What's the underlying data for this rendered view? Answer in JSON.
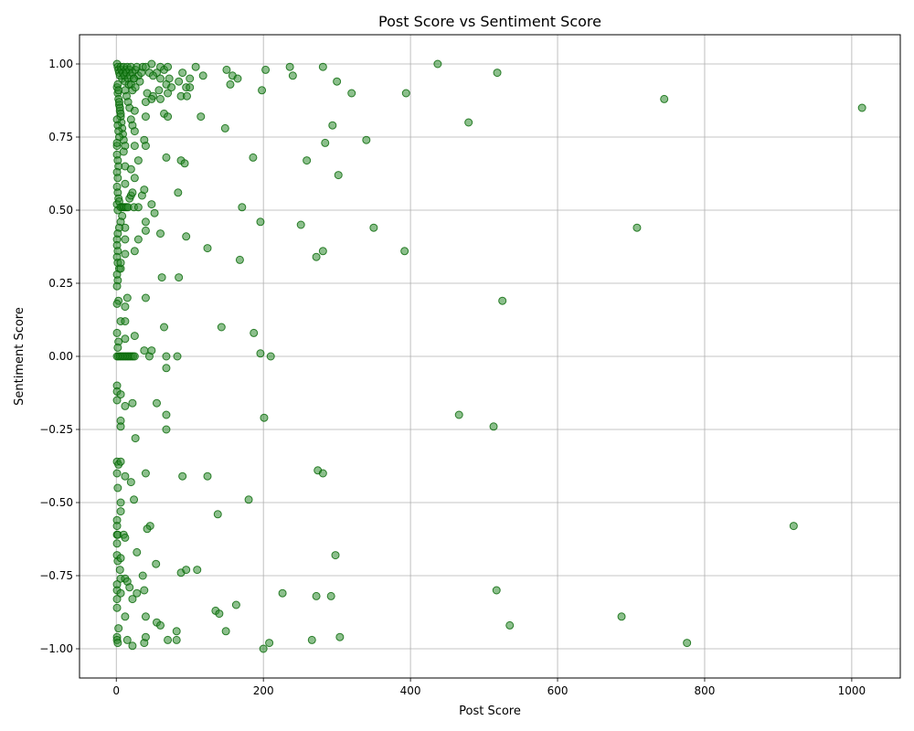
{
  "chart_data": {
    "type": "scatter",
    "title": "Post Score vs Sentiment Score",
    "xlabel": "Post Score",
    "ylabel": "Sentiment Score",
    "xlim": [
      -50,
      1066
    ],
    "ylim": [
      -1.1,
      1.1
    ],
    "x_ticks": [
      0,
      200,
      400,
      600,
      800,
      1000
    ],
    "y_ticks": [
      -1.0,
      -0.75,
      -0.5,
      -0.25,
      0.0,
      0.25,
      0.5,
      0.75,
      1.0
    ],
    "x_tick_labels": [
      "0",
      "200",
      "400",
      "600",
      "800",
      "1000"
    ],
    "y_tick_labels": [
      "−1.00",
      "−0.75",
      "−0.50",
      "−0.25",
      "0.00",
      "0.25",
      "0.50",
      "0.75",
      "1.00"
    ],
    "grid": true,
    "marker_color": "#2e8b2e",
    "marker_edge_color": "#006400",
    "marker_alpha": 0.55,
    "series": [
      {
        "points": [
          [
            1,
            1.0
          ],
          [
            2,
            0.99
          ],
          [
            3,
            0.98
          ],
          [
            4,
            0.97
          ],
          [
            5,
            0.96
          ],
          [
            6,
            0.99
          ],
          [
            7,
            0.98
          ],
          [
            8,
            0.95
          ],
          [
            9,
            0.97
          ],
          [
            10,
            0.99
          ],
          [
            11,
            0.96
          ],
          [
            12,
            0.94
          ],
          [
            13,
            0.98
          ],
          [
            14,
            0.97
          ],
          [
            15,
            0.99
          ],
          [
            16,
            0.95
          ],
          [
            17,
            0.93
          ],
          [
            18,
            0.98
          ],
          [
            19,
            0.96
          ],
          [
            20,
            0.99
          ],
          [
            22,
            0.97
          ],
          [
            24,
            0.95
          ],
          [
            26,
            0.98
          ],
          [
            28,
            0.99
          ],
          [
            30,
            0.96
          ],
          [
            32,
            0.94
          ],
          [
            34,
            0.97
          ],
          [
            36,
            0.99
          ],
          [
            1,
            0.92
          ],
          [
            2,
            0.9
          ],
          [
            3,
            0.88
          ],
          [
            4,
            0.86
          ],
          [
            5,
            0.84
          ],
          [
            6,
            0.82
          ],
          [
            7,
            0.8
          ],
          [
            8,
            0.78
          ],
          [
            9,
            0.76
          ],
          [
            10,
            0.74
          ],
          [
            1,
            0.72
          ],
          [
            2,
            0.93
          ],
          [
            3,
            0.91
          ],
          [
            4,
            0.87
          ],
          [
            5,
            0.85
          ],
          [
            6,
            0.83
          ],
          [
            1,
            0.81
          ],
          [
            2,
            0.79
          ],
          [
            3,
            0.77
          ],
          [
            4,
            0.75
          ],
          [
            1,
            0.73
          ],
          [
            12,
            0.91
          ],
          [
            14,
            0.89
          ],
          [
            16,
            0.87
          ],
          [
            18,
            0.85
          ],
          [
            20,
            0.93
          ],
          [
            22,
            0.91
          ],
          [
            24,
            0.95
          ],
          [
            26,
            0.92
          ],
          [
            40,
            0.99
          ],
          [
            48,
            1.0
          ],
          [
            55,
            0.97
          ],
          [
            60,
            0.99
          ],
          [
            65,
            0.98
          ],
          [
            70,
            0.99
          ],
          [
            72,
            0.95
          ],
          [
            45,
            0.97
          ],
          [
            50,
            0.96
          ],
          [
            85,
            0.94
          ],
          [
            90,
            0.97
          ],
          [
            100,
            0.95
          ],
          [
            108,
            0.99
          ],
          [
            118,
            0.96
          ],
          [
            60,
            0.95
          ],
          [
            68,
            0.93
          ],
          [
            75,
            0.92
          ],
          [
            95,
            0.92
          ],
          [
            100,
            0.92
          ],
          [
            42,
            0.9
          ],
          [
            50,
            0.89
          ],
          [
            58,
            0.91
          ],
          [
            70,
            0.9
          ],
          [
            88,
            0.89
          ],
          [
            96,
            0.89
          ],
          [
            40,
            0.87
          ],
          [
            48,
            0.88
          ],
          [
            60,
            0.88
          ],
          [
            25,
            0.84
          ],
          [
            40,
            0.82
          ],
          [
            65,
            0.83
          ],
          [
            70,
            0.82
          ],
          [
            115,
            0.82
          ],
          [
            148,
            0.78
          ],
          [
            150,
            0.98
          ],
          [
            158,
            0.96
          ],
          [
            165,
            0.95
          ],
          [
            155,
            0.93
          ],
          [
            198,
            0.91
          ],
          [
            203,
            0.98
          ],
          [
            236,
            0.99
          ],
          [
            240,
            0.96
          ],
          [
            281,
            0.99
          ],
          [
            300,
            0.94
          ],
          [
            320,
            0.9
          ],
          [
            394,
            0.9
          ],
          [
            437,
            1.0
          ],
          [
            518,
            0.97
          ],
          [
            745,
            0.88
          ],
          [
            479,
            0.8
          ],
          [
            1014,
            0.85
          ],
          [
            294,
            0.79
          ],
          [
            340,
            0.74
          ],
          [
            284,
            0.73
          ],
          [
            20,
            0.81
          ],
          [
            22,
            0.79
          ],
          [
            25,
            0.77
          ],
          [
            38,
            0.74
          ],
          [
            40,
            0.72
          ],
          [
            25,
            0.72
          ],
          [
            12,
            0.72
          ],
          [
            10,
            0.7
          ],
          [
            1,
            0.69
          ],
          [
            2,
            0.67
          ],
          [
            3,
            0.65
          ],
          [
            1,
            0.63
          ],
          [
            2,
            0.61
          ],
          [
            1,
            0.58
          ],
          [
            2,
            0.56
          ],
          [
            3,
            0.54
          ],
          [
            1,
            0.52
          ],
          [
            2,
            0.5
          ],
          [
            4,
            0.53
          ],
          [
            6,
            0.51
          ],
          [
            8,
            0.51
          ],
          [
            10,
            0.51
          ],
          [
            12,
            0.51
          ],
          [
            14,
            0.51
          ],
          [
            16,
            0.51
          ],
          [
            18,
            0.54
          ],
          [
            20,
            0.55
          ],
          [
            22,
            0.56
          ],
          [
            24,
            0.51
          ],
          [
            30,
            0.51
          ],
          [
            12,
            0.59
          ],
          [
            12,
            0.65
          ],
          [
            20,
            0.64
          ],
          [
            25,
            0.61
          ],
          [
            30,
            0.67
          ],
          [
            35,
            0.55
          ],
          [
            38,
            0.57
          ],
          [
            48,
            0.52
          ],
          [
            52,
            0.49
          ],
          [
            68,
            0.68
          ],
          [
            88,
            0.67
          ],
          [
            93,
            0.66
          ],
          [
            84,
            0.56
          ],
          [
            186,
            0.68
          ],
          [
            259,
            0.67
          ],
          [
            302,
            0.62
          ],
          [
            171,
            0.51
          ],
          [
            196,
            0.46
          ],
          [
            251,
            0.45
          ],
          [
            350,
            0.44
          ],
          [
            708,
            0.44
          ],
          [
            392,
            0.36
          ],
          [
            281,
            0.36
          ],
          [
            272,
            0.34
          ],
          [
            168,
            0.33
          ],
          [
            124,
            0.37
          ],
          [
            95,
            0.41
          ],
          [
            60,
            0.42
          ],
          [
            40,
            0.46
          ],
          [
            40,
            0.43
          ],
          [
            30,
            0.4
          ],
          [
            25,
            0.36
          ],
          [
            12,
            0.35
          ],
          [
            12,
            0.4
          ],
          [
            12,
            0.44
          ],
          [
            8,
            0.48
          ],
          [
            6,
            0.46
          ],
          [
            4,
            0.44
          ],
          [
            2,
            0.42
          ],
          [
            1,
            0.4
          ],
          [
            1,
            0.38
          ],
          [
            2,
            0.36
          ],
          [
            1,
            0.34
          ],
          [
            2,
            0.32
          ],
          [
            4,
            0.3
          ],
          [
            6,
            0.3
          ],
          [
            6,
            0.32
          ],
          [
            1,
            0.28
          ],
          [
            2,
            0.26
          ],
          [
            1,
            0.24
          ],
          [
            85,
            0.27
          ],
          [
            62,
            0.27
          ],
          [
            525,
            0.19
          ],
          [
            40,
            0.2
          ],
          [
            15,
            0.2
          ],
          [
            12,
            0.17
          ],
          [
            3,
            0.19
          ],
          [
            1,
            0.18
          ],
          [
            6,
            0.12
          ],
          [
            12,
            0.12
          ],
          [
            65,
            0.1
          ],
          [
            143,
            0.1
          ],
          [
            187,
            0.08
          ],
          [
            25,
            0.07
          ],
          [
            12,
            0.06
          ],
          [
            3,
            0.05
          ],
          [
            1,
            0.08
          ],
          [
            2,
            0.03
          ],
          [
            1,
            0.0
          ],
          [
            3,
            0.0
          ],
          [
            5,
            0.0
          ],
          [
            7,
            0.0
          ],
          [
            9,
            0.0
          ],
          [
            11,
            0.0
          ],
          [
            13,
            0.0
          ],
          [
            15,
            0.0
          ],
          [
            17,
            0.0
          ],
          [
            19,
            0.0
          ],
          [
            21,
            0.0
          ],
          [
            23,
            0.0
          ],
          [
            25,
            0.0
          ],
          [
            38,
            0.02
          ],
          [
            45,
            0.0
          ],
          [
            48,
            0.02
          ],
          [
            68,
            0.0
          ],
          [
            83,
            0.0
          ],
          [
            196,
            0.01
          ],
          [
            210,
            0.0
          ],
          [
            68,
            -0.04
          ],
          [
            1,
            -0.1
          ],
          [
            1,
            -0.12
          ],
          [
            1,
            -0.15
          ],
          [
            6,
            -0.13
          ],
          [
            12,
            -0.17
          ],
          [
            22,
            -0.16
          ],
          [
            55,
            -0.16
          ],
          [
            68,
            -0.2
          ],
          [
            6,
            -0.22
          ],
          [
            6,
            -0.24
          ],
          [
            68,
            -0.25
          ],
          [
            201,
            -0.21
          ],
          [
            466,
            -0.2
          ],
          [
            513,
            -0.24
          ],
          [
            26,
            -0.28
          ],
          [
            1,
            -0.36
          ],
          [
            3,
            -0.37
          ],
          [
            6,
            -0.36
          ],
          [
            1,
            -0.4
          ],
          [
            12,
            -0.41
          ],
          [
            20,
            -0.43
          ],
          [
            2,
            -0.45
          ],
          [
            24,
            -0.49
          ],
          [
            6,
            -0.5
          ],
          [
            6,
            -0.53
          ],
          [
            40,
            -0.4
          ],
          [
            90,
            -0.41
          ],
          [
            124,
            -0.41
          ],
          [
            274,
            -0.39
          ],
          [
            281,
            -0.4
          ],
          [
            180,
            -0.49
          ],
          [
            138,
            -0.54
          ],
          [
            46,
            -0.58
          ],
          [
            42,
            -0.59
          ],
          [
            1,
            -0.56
          ],
          [
            1,
            -0.58
          ],
          [
            1,
            -0.61
          ],
          [
            2,
            -0.61
          ],
          [
            1,
            -0.64
          ],
          [
            10,
            -0.61
          ],
          [
            12,
            -0.62
          ],
          [
            28,
            -0.67
          ],
          [
            921,
            -0.58
          ],
          [
            298,
            -0.68
          ],
          [
            1,
            -0.68
          ],
          [
            2,
            -0.7
          ],
          [
            6,
            -0.69
          ],
          [
            5,
            -0.73
          ],
          [
            6,
            -0.76
          ],
          [
            12,
            -0.76
          ],
          [
            15,
            -0.77
          ],
          [
            18,
            -0.79
          ],
          [
            1,
            -0.78
          ],
          [
            1,
            -0.8
          ],
          [
            1,
            -0.83
          ],
          [
            1,
            -0.86
          ],
          [
            6,
            -0.81
          ],
          [
            22,
            -0.83
          ],
          [
            28,
            -0.81
          ],
          [
            38,
            -0.8
          ],
          [
            36,
            -0.75
          ],
          [
            54,
            -0.71
          ],
          [
            88,
            -0.74
          ],
          [
            95,
            -0.73
          ],
          [
            110,
            -0.73
          ],
          [
            226,
            -0.81
          ],
          [
            272,
            -0.82
          ],
          [
            292,
            -0.82
          ],
          [
            163,
            -0.85
          ],
          [
            135,
            -0.87
          ],
          [
            140,
            -0.88
          ],
          [
            517,
            -0.8
          ],
          [
            687,
            -0.89
          ],
          [
            535,
            -0.92
          ],
          [
            12,
            -0.89
          ],
          [
            40,
            -0.89
          ],
          [
            55,
            -0.91
          ],
          [
            60,
            -0.92
          ],
          [
            82,
            -0.94
          ],
          [
            149,
            -0.94
          ],
          [
            3,
            -0.93
          ],
          [
            1,
            -0.96
          ],
          [
            1,
            -0.97
          ],
          [
            2,
            -0.98
          ],
          [
            15,
            -0.97
          ],
          [
            22,
            -0.99
          ],
          [
            38,
            -0.98
          ],
          [
            40,
            -0.96
          ],
          [
            70,
            -0.97
          ],
          [
            82,
            -0.97
          ],
          [
            200,
            -1.0
          ],
          [
            208,
            -0.98
          ],
          [
            266,
            -0.97
          ],
          [
            304,
            -0.96
          ],
          [
            776,
            -0.98
          ]
        ]
      }
    ]
  }
}
